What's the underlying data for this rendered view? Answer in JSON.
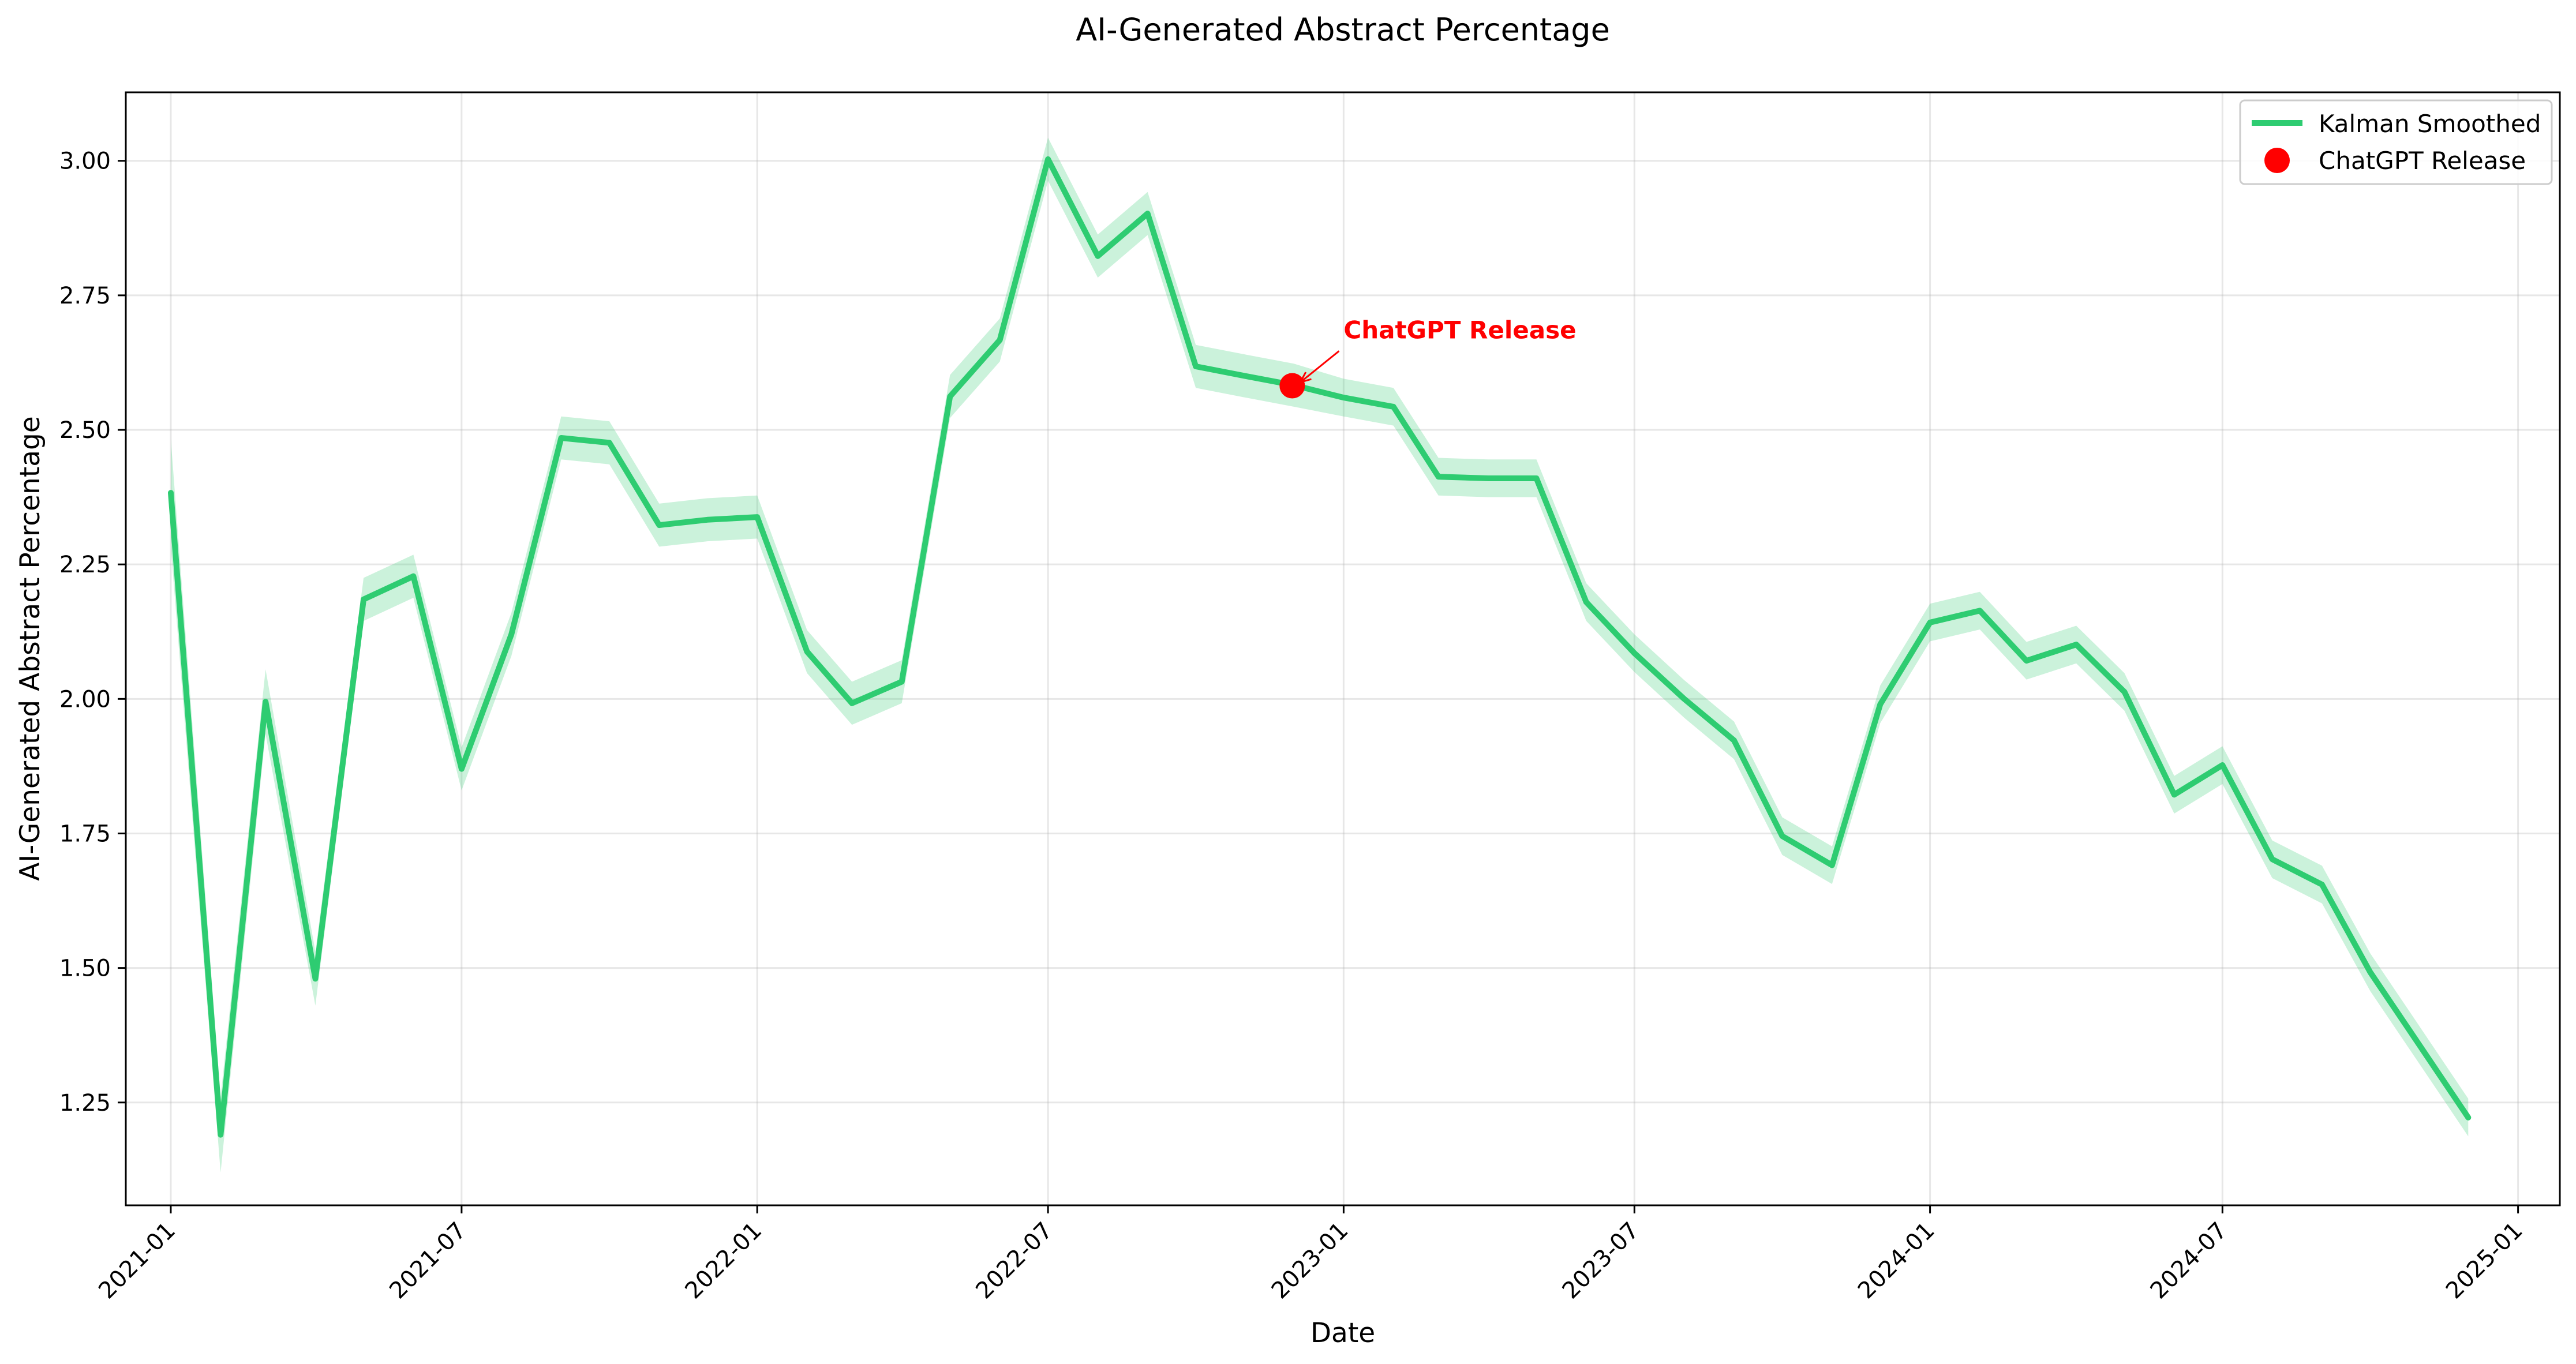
{
  "chart_data": {
    "type": "line",
    "title": "AI-Generated Abstract Percentage",
    "xlabel": "Date",
    "ylabel": "AI-Generated Abstract Percentage",
    "xlim": [
      "2020-12-04",
      "2025-01-27"
    ],
    "ylim": [
      1.0589,
      3.1273
    ],
    "x_ticks": [
      "2021-01",
      "2021-07",
      "2022-01",
      "2022-07",
      "2023-01",
      "2023-07",
      "2024-01",
      "2024-07",
      "2025-01"
    ],
    "y_ticks": [
      "1.25",
      "1.50",
      "1.75",
      "2.00",
      "2.25",
      "2.50",
      "2.75",
      "3.00"
    ],
    "grid": true,
    "legend_position": "top-right",
    "series": [
      {
        "name": "Kalman Smoothed",
        "color": "#2ecc71",
        "band_color": "#2ecc71",
        "x": [
          "2021-01-01",
          "2021-02-01",
          "2021-03-01",
          "2021-04-01",
          "2021-05-01",
          "2021-06-01",
          "2021-07-01",
          "2021-08-01",
          "2021-09-01",
          "2021-10-01",
          "2021-11-01",
          "2021-12-01",
          "2022-01-01",
          "2022-02-01",
          "2022-03-01",
          "2022-04-01",
          "2022-05-01",
          "2022-06-01",
          "2022-07-01",
          "2022-08-01",
          "2022-09-01",
          "2022-10-01",
          "2022-11-01",
          "2022-12-01",
          "2023-01-01",
          "2023-02-01",
          "2023-03-01",
          "2023-04-01",
          "2023-05-01",
          "2023-06-01",
          "2023-07-01",
          "2023-08-01",
          "2023-09-01",
          "2023-10-01",
          "2023-11-01",
          "2023-12-01",
          "2024-01-01",
          "2024-02-01",
          "2024-03-01",
          "2024-04-01",
          "2024-05-01",
          "2024-06-01",
          "2024-07-01",
          "2024-08-01",
          "2024-09-01",
          "2024-10-01",
          "2024-11-01",
          "2024-12-01"
        ],
        "values": [
          2.383,
          1.19,
          1.995,
          1.48,
          2.185,
          2.228,
          1.87,
          2.12,
          2.485,
          2.476,
          2.323,
          2.333,
          2.338,
          2.088,
          1.992,
          2.032,
          2.562,
          2.667,
          3.003,
          2.823,
          2.902,
          2.618,
          2.6,
          2.583,
          2.56,
          2.543,
          2.413,
          2.41,
          2.41,
          2.18,
          2.085,
          2.0,
          1.923,
          1.745,
          1.691,
          1.99,
          2.142,
          2.164,
          2.071,
          2.101,
          2.013,
          1.822,
          1.877,
          1.702,
          1.655,
          1.492,
          1.355,
          1.222
        ],
        "band_halfwidth": [
          0.1,
          0.07,
          0.06,
          0.05,
          0.04,
          0.04,
          0.04,
          0.04,
          0.04,
          0.04,
          0.04,
          0.04,
          0.04,
          0.04,
          0.04,
          0.04,
          0.04,
          0.04,
          0.04,
          0.04,
          0.04,
          0.04,
          0.04,
          0.04,
          0.035,
          0.035,
          0.035,
          0.035,
          0.035,
          0.035,
          0.035,
          0.035,
          0.035,
          0.035,
          0.035,
          0.035,
          0.035,
          0.035,
          0.035,
          0.035,
          0.035,
          0.035,
          0.035,
          0.035,
          0.035,
          0.035,
          0.035,
          0.035
        ]
      }
    ],
    "markers": [
      {
        "name": "ChatGPT Release",
        "x": "2022-11-30",
        "y": 2.582,
        "color": "#ff0000"
      }
    ],
    "annotations": [
      {
        "text": "ChatGPT Release",
        "color": "#ff0000",
        "target_x": "2022-11-30",
        "target_y": 2.582,
        "text_x": "2023-01-01",
        "text_y": 2.67
      }
    ]
  }
}
